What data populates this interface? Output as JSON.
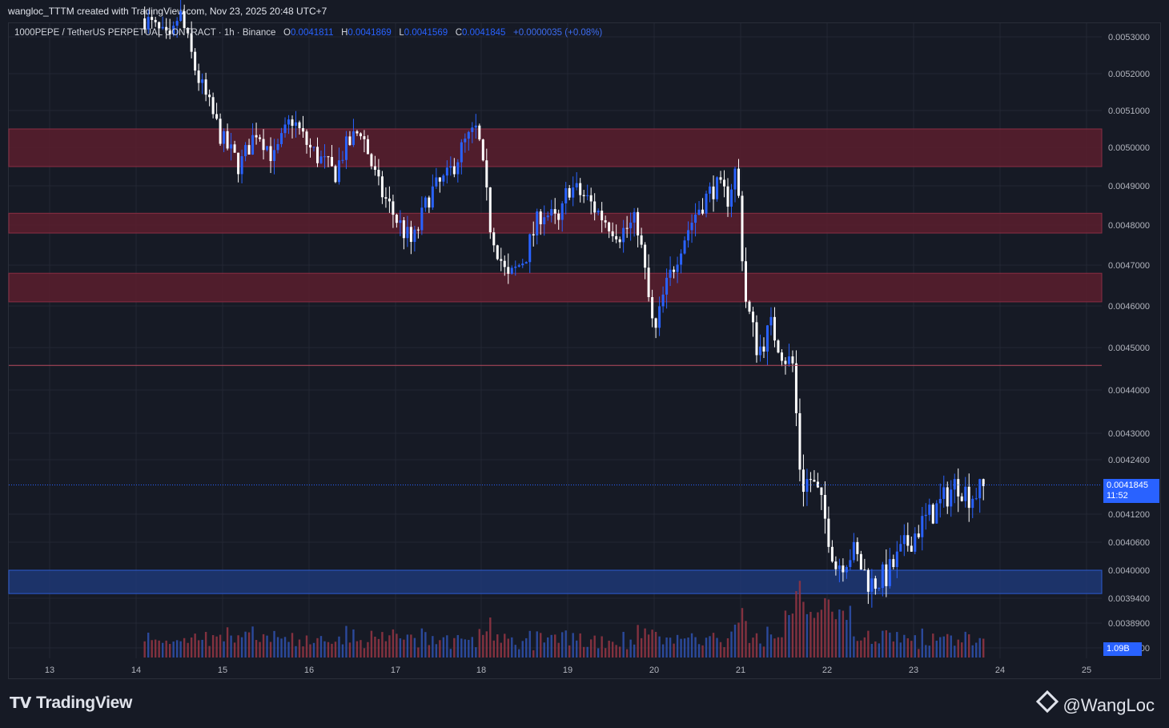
{
  "header": {
    "title": "wangloc_TTTM created with TradingView.com, Nov 23, 2025 20:48 UTC+7"
  },
  "legend": {
    "symbol": "1000PEPE / TetherUS PERPETUAL CONTRACT · 1h · Binance",
    "o_label": "O",
    "o": "0.0041811",
    "h_label": "H",
    "h": "0.0041869",
    "l_label": "L",
    "l": "0.0041569",
    "c_label": "C",
    "c": "0.0041845",
    "change": "+0.0000035 (+0.08%)"
  },
  "price_tag": {
    "price": "0.0041845",
    "countdown": "11:52"
  },
  "volume_tag": "1.09B",
  "footer": {
    "logo": "TradingView",
    "watermark": "@WangLoc"
  },
  "colors": {
    "up": "#2962ff",
    "down": "#ffffff",
    "resistance_zone": "#5a1f2e",
    "support_zone": "#1e3a7a",
    "background": "#161a25"
  },
  "chart_data": {
    "type": "candlestick",
    "y_axis_ticks": [
      "0.0053000",
      "0.0052000",
      "0.0051000",
      "0.0050000",
      "0.0049000",
      "0.0048000",
      "0.0047000",
      "0.0046000",
      "0.0045000",
      "0.0044000",
      "0.0043000",
      "0.0042400",
      "0.0041200",
      "0.0040600",
      "0.0040000",
      "0.0039400",
      "0.0038900",
      "0.0038400"
    ],
    "x_axis_ticks": [
      "13",
      "14",
      "15",
      "16",
      "17",
      "18",
      "19",
      "20",
      "21",
      "22",
      "23",
      "24",
      "25"
    ],
    "zones": [
      {
        "type": "resistance",
        "low": 0.00495,
        "high": 0.00505
      },
      {
        "type": "resistance",
        "low": 0.00478,
        "high": 0.00483
      },
      {
        "type": "resistance",
        "low": 0.00461,
        "high": 0.00468
      },
      {
        "type": "support",
        "low": 0.00395,
        "high": 0.004
      }
    ],
    "horizontal_line": 0.004458,
    "last_price": 0.0041845,
    "path_days": [
      14.1,
      14.4,
      14.5,
      14.7,
      15.0,
      15.2,
      15.4,
      15.6,
      15.8,
      16.0,
      16.3,
      16.4,
      16.6,
      16.8,
      17.0,
      17.2,
      17.4,
      17.6,
      17.8,
      17.95,
      18.1,
      18.3,
      18.5,
      18.7,
      18.9,
      19.0,
      19.2,
      19.4,
      19.6,
      19.8,
      20.0,
      20.1,
      20.3,
      20.5,
      20.7,
      20.85,
      20.95,
      21.05,
      21.2,
      21.35,
      21.5,
      21.6,
      21.7,
      21.8,
      21.9,
      22.0,
      22.1,
      22.3,
      22.5,
      22.7,
      22.9,
      23.1,
      23.3,
      23.5,
      23.65,
      23.75,
      23.85
    ],
    "path_prices": [
      0.00535,
      0.00528,
      0.00537,
      0.0052,
      0.00502,
      0.00495,
      0.00505,
      0.00497,
      0.00508,
      0.005,
      0.00493,
      0.00499,
      0.00505,
      0.0049,
      0.00482,
      0.00475,
      0.00488,
      0.00492,
      0.00501,
      0.00505,
      0.0048,
      0.00466,
      0.00472,
      0.00484,
      0.0048,
      0.0049,
      0.00487,
      0.00482,
      0.00478,
      0.00481,
      0.00452,
      0.00462,
      0.00475,
      0.00484,
      0.0049,
      0.00487,
      0.00495,
      0.00462,
      0.00449,
      0.00455,
      0.00448,
      0.00446,
      0.00418,
      0.0042,
      0.00416,
      0.00409,
      0.00401,
      0.00404,
      0.00397,
      0.00399,
      0.00405,
      0.0041,
      0.00414,
      0.00419,
      0.00416,
      0.00417,
      0.00418
    ]
  }
}
